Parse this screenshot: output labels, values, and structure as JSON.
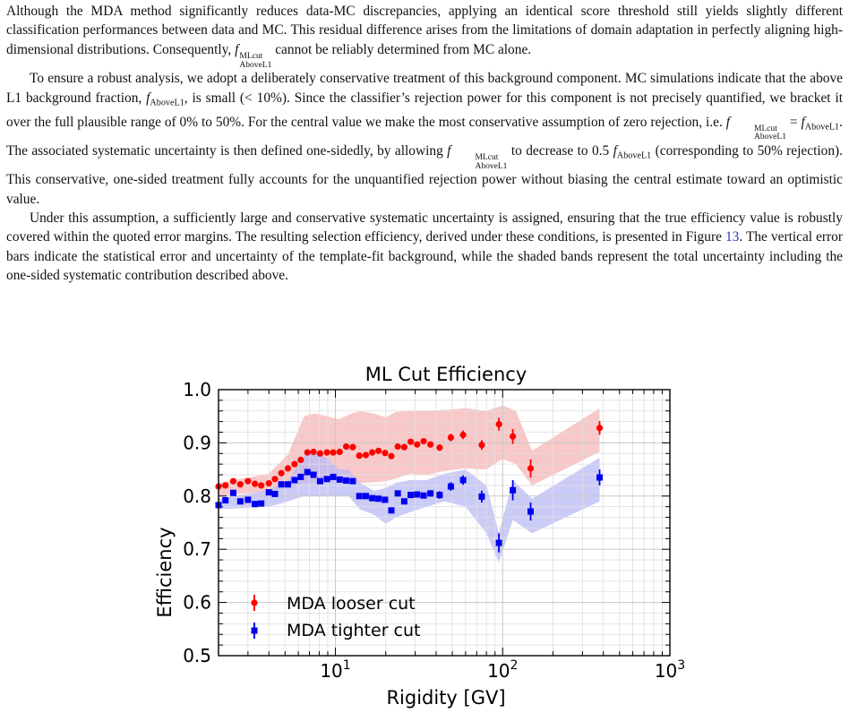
{
  "paragraphs": {
    "p1": {
      "text_a": "Although the MDA method significantly reduces data-MC discrepancies, applying an identical score threshold still yields slightly different classification performances between data and MC. This residual difference arises from the limitations of domain adaptation in perfectly aligning high-dimensional distributions. Consequently, ",
      "sym_f": "f",
      "sym_sup": "MLcut",
      "sym_sub": "AboveL1",
      "text_b": " cannot be reliably determined from MC alone."
    },
    "p2": {
      "text_a": "To ensure a robust analysis, we adopt a deliberately conservative treatment of this background component. MC simulations indicate that the above L1 background fraction, ",
      "text_b": ", is small (< 10%). Since the classifier’s rejection power for this component is not precisely quantified, we bracket it over the full plausible range of 0% to 50%. For the central value we make the most conservative assumption of zero rejection, i.e. ",
      "eq": " = ",
      "text_c": ". The associated systematic uncertainty is then defined one-sidedly, by allowing ",
      "text_d": " to decrease to 0.5 ",
      "text_e": " (corresponding to 50% rejection). This conservative, one-sided treatment fully accounts for the unquantified rejection power without biasing the central estimate toward an optimistic value."
    },
    "p3": {
      "text_a": "Under this assumption, a sufficiently large and conservative systematic uncertainty is assigned, ensuring that the true efficiency value is robustly covered within the quoted error margins. The resulting selection efficiency, derived under these conditions, is presented in Figure ",
      "fig_ref": "13",
      "text_b": ". The vertical error bars indicate the statistical error and uncertainty of the template-fit background, while the shaded bands represent the total uncertainty including the one-sided systematic contribution described above."
    }
  },
  "chart_data": {
    "type": "scatter",
    "title": "ML Cut Efficiency",
    "xlabel": "Rigidity [GV]",
    "ylabel": "Efficiency",
    "xscale": "log",
    "xlim": [
      2.0,
      1000
    ],
    "ylim": [
      0.5,
      1.0
    ],
    "xticks": [
      {
        "base": "10",
        "exp": "1"
      },
      {
        "base": "10",
        "exp": "2"
      },
      {
        "base": "10",
        "exp": "3"
      }
    ],
    "yticks": [
      "0.5",
      "0.6",
      "0.7",
      "0.8",
      "0.9",
      "1.0"
    ],
    "grid": true,
    "legend_position": "lower-left",
    "series": [
      {
        "name": "MDA looser cut",
        "color": "#ff0000",
        "band_color": "#f5b5b5",
        "marker": "circle",
        "x": [
          2.0,
          2.2,
          2.45,
          2.7,
          3.0,
          3.3,
          3.6,
          4.0,
          4.35,
          4.75,
          5.2,
          5.7,
          6.2,
          6.8,
          7.4,
          8.1,
          8.9,
          9.7,
          10.6,
          11.6,
          12.7,
          13.9,
          15.2,
          16.6,
          18.1,
          19.8,
          21.6,
          23.6,
          25.8,
          28.2,
          30.8,
          33.7,
          37.0,
          42.0,
          49.0,
          58.0,
          75.0,
          95.0,
          115.0,
          147.0,
          380.0
        ],
        "y": [
          0.818,
          0.82,
          0.828,
          0.822,
          0.828,
          0.823,
          0.82,
          0.824,
          0.832,
          0.843,
          0.852,
          0.86,
          0.868,
          0.882,
          0.883,
          0.88,
          0.882,
          0.882,
          0.883,
          0.893,
          0.892,
          0.876,
          0.877,
          0.882,
          0.885,
          0.881,
          0.875,
          0.893,
          0.892,
          0.902,
          0.897,
          0.903,
          0.897,
          0.891,
          0.91,
          0.915,
          0.896,
          0.935,
          0.912,
          0.852,
          0.928
        ],
        "err": [
          0.005,
          0.005,
          0.005,
          0.005,
          0.005,
          0.005,
          0.005,
          0.005,
          0.005,
          0.005,
          0.005,
          0.005,
          0.005,
          0.005,
          0.005,
          0.005,
          0.005,
          0.005,
          0.005,
          0.005,
          0.005,
          0.005,
          0.005,
          0.005,
          0.005,
          0.005,
          0.005,
          0.005,
          0.005,
          0.005,
          0.005,
          0.005,
          0.006,
          0.006,
          0.007,
          0.008,
          0.009,
          0.012,
          0.014,
          0.017,
          0.013
        ],
        "band_x": [
          2.0,
          4.0,
          5.2,
          6.5,
          7.5,
          9.0,
          10.5,
          12.0,
          14.0,
          17.0,
          20.0,
          23.0,
          28.0,
          35.0,
          45.0,
          60.0,
          80.0,
          100.0,
          120.0,
          150.0,
          380.0
        ],
        "band_lo": [
          0.8,
          0.81,
          0.815,
          0.825,
          0.826,
          0.826,
          0.83,
          0.83,
          0.824,
          0.826,
          0.828,
          0.833,
          0.842,
          0.84,
          0.847,
          0.852,
          0.85,
          0.87,
          0.86,
          0.82,
          0.883
        ],
        "band_hi": [
          0.825,
          0.842,
          0.878,
          0.95,
          0.955,
          0.95,
          0.944,
          0.953,
          0.96,
          0.955,
          0.948,
          0.958,
          0.96,
          0.96,
          0.962,
          0.965,
          0.96,
          0.97,
          0.96,
          0.885,
          0.965
        ]
      },
      {
        "name": "MDA tighter cut",
        "color": "#0000ee",
        "band_color": "#b9b9f5",
        "marker": "square",
        "x": [
          2.0,
          2.2,
          2.45,
          2.7,
          3.0,
          3.3,
          3.6,
          4.0,
          4.35,
          4.75,
          5.2,
          5.7,
          6.2,
          6.8,
          7.4,
          8.1,
          8.9,
          9.7,
          10.6,
          11.6,
          12.7,
          13.9,
          15.2,
          16.6,
          18.1,
          19.8,
          21.6,
          23.6,
          25.8,
          28.2,
          30.8,
          33.7,
          37.0,
          42.0,
          49.0,
          58.0,
          75.0,
          95.0,
          115.0,
          147.0,
          380.0
        ],
        "y": [
          0.783,
          0.792,
          0.806,
          0.79,
          0.793,
          0.785,
          0.786,
          0.807,
          0.804,
          0.822,
          0.822,
          0.83,
          0.836,
          0.845,
          0.84,
          0.828,
          0.832,
          0.836,
          0.831,
          0.829,
          0.828,
          0.8,
          0.8,
          0.796,
          0.795,
          0.793,
          0.773,
          0.805,
          0.79,
          0.802,
          0.803,
          0.801,
          0.805,
          0.802,
          0.818,
          0.83,
          0.799,
          0.712,
          0.811,
          0.771,
          0.835
        ],
        "err": [
          0.005,
          0.005,
          0.005,
          0.005,
          0.005,
          0.005,
          0.005,
          0.005,
          0.005,
          0.005,
          0.005,
          0.005,
          0.005,
          0.005,
          0.005,
          0.005,
          0.005,
          0.005,
          0.005,
          0.005,
          0.005,
          0.005,
          0.005,
          0.005,
          0.005,
          0.005,
          0.005,
          0.005,
          0.005,
          0.005,
          0.005,
          0.005,
          0.006,
          0.007,
          0.008,
          0.009,
          0.011,
          0.018,
          0.019,
          0.017,
          0.015
        ],
        "band_x": [
          2.0,
          4.0,
          5.2,
          6.5,
          7.5,
          9.0,
          10.5,
          12.0,
          14.0,
          17.0,
          20.0,
          23.0,
          28.0,
          35.0,
          45.0,
          60.0,
          80.0,
          95.0,
          115.0,
          150.0,
          380.0
        ],
        "band_lo": [
          0.775,
          0.78,
          0.79,
          0.8,
          0.8,
          0.8,
          0.8,
          0.8,
          0.775,
          0.765,
          0.748,
          0.76,
          0.77,
          0.78,
          0.79,
          0.78,
          0.73,
          0.675,
          0.755,
          0.73,
          0.79
        ],
        "band_hi": [
          0.795,
          0.812,
          0.83,
          0.875,
          0.885,
          0.87,
          0.85,
          0.85,
          0.825,
          0.81,
          0.815,
          0.825,
          0.83,
          0.83,
          0.842,
          0.85,
          0.82,
          0.73,
          0.83,
          0.795,
          0.872
        ]
      }
    ]
  }
}
